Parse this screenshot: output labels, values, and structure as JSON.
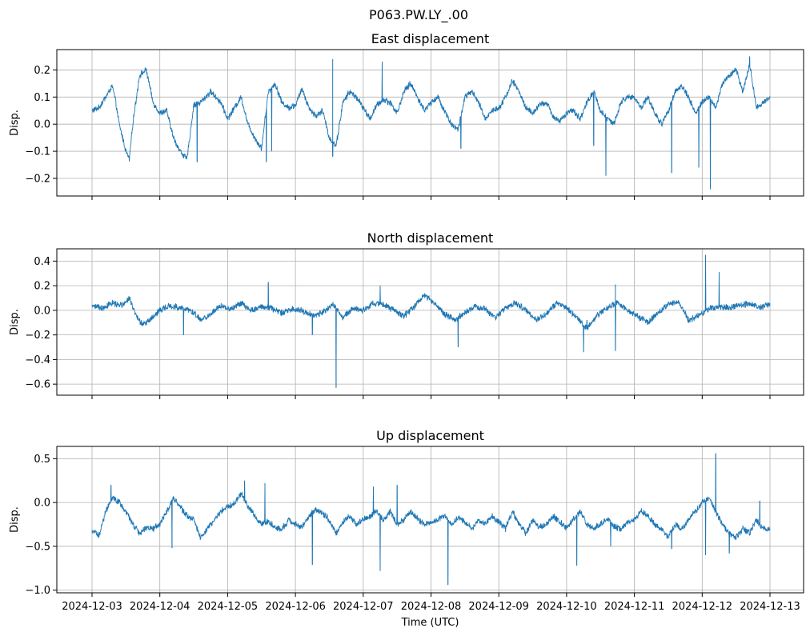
{
  "chart_data": [
    {
      "type": "line",
      "title": "East displacement",
      "suptitle": "P063.PW.LY_.00",
      "ylabel": "Disp.",
      "xlabel": "",
      "ylim": [
        -0.265,
        0.275
      ],
      "yticks": [
        -0.2,
        -0.1,
        0.0,
        0.1,
        0.2
      ],
      "ytick_labels": [
        "−0.2",
        "−0.1",
        "0.0",
        "0.1",
        "0.2"
      ],
      "x_start": "2024-12-03",
      "x_end": "2024-12-13",
      "grid": true,
      "color": "#1f77b4",
      "series": [
        {
          "x_days": [
            0.0,
            0.1,
            0.2,
            0.3,
            0.35,
            0.4,
            0.5,
            0.55,
            0.6,
            0.7,
            0.8,
            0.9,
            1.0,
            1.1,
            1.2,
            1.3,
            1.4,
            1.5,
            1.6,
            1.75,
            1.9,
            2.0,
            2.1,
            2.2,
            2.3,
            2.4,
            2.5,
            2.6,
            2.7,
            2.8,
            2.9,
            3.0,
            3.1,
            3.2,
            3.3,
            3.4,
            3.5,
            3.6,
            3.7,
            3.8,
            3.9,
            4.0,
            4.1,
            4.2,
            4.3,
            4.4,
            4.5,
            4.6,
            4.7,
            4.8,
            4.9,
            5.0,
            5.1,
            5.2,
            5.3,
            5.4,
            5.5,
            5.6,
            5.7,
            5.8,
            5.9,
            6.0,
            6.1,
            6.2,
            6.3,
            6.4,
            6.5,
            6.6,
            6.7,
            6.8,
            6.9,
            7.0,
            7.1,
            7.2,
            7.3,
            7.4,
            7.5,
            7.6,
            7.7,
            7.8,
            7.9,
            8.0,
            8.1,
            8.2,
            8.3,
            8.4,
            8.5,
            8.6,
            8.7,
            8.8,
            8.9,
            9.0,
            9.1,
            9.2,
            9.3,
            9.4,
            9.5,
            9.6,
            9.7,
            9.8,
            9.9,
            10.0
          ],
          "values": [
            0.05,
            0.06,
            0.1,
            0.14,
            0.08,
            0.0,
            -0.1,
            -0.13,
            0.0,
            0.18,
            0.2,
            0.08,
            0.04,
            0.05,
            -0.05,
            -0.1,
            -0.13,
            0.07,
            0.08,
            0.12,
            0.08,
            0.02,
            0.06,
            0.1,
            0.0,
            -0.05,
            -0.09,
            0.12,
            0.15,
            0.08,
            0.06,
            0.07,
            0.13,
            0.06,
            0.03,
            0.05,
            -0.05,
            -0.08,
            0.08,
            0.12,
            0.1,
            0.06,
            0.02,
            0.07,
            0.09,
            0.08,
            0.04,
            0.12,
            0.15,
            0.1,
            0.05,
            0.08,
            0.1,
            0.05,
            0.0,
            -0.02,
            0.1,
            0.12,
            0.08,
            0.02,
            0.05,
            0.06,
            0.1,
            0.16,
            0.12,
            0.06,
            0.04,
            0.07,
            0.08,
            0.03,
            0.01,
            0.04,
            0.05,
            0.02,
            0.08,
            0.12,
            0.05,
            0.02,
            0.0,
            0.08,
            0.1,
            0.1,
            0.06,
            0.1,
            0.04,
            0.0,
            0.05,
            0.12,
            0.14,
            0.1,
            0.04,
            0.08,
            0.1,
            0.06,
            0.15,
            0.18,
            0.2,
            0.12,
            0.22,
            0.06,
            0.08,
            0.1
          ]
        }
      ],
      "spikes": [
        {
          "x_days": 1.55,
          "value": -0.14
        },
        {
          "x_days": 2.57,
          "value": -0.14
        },
        {
          "x_days": 2.65,
          "value": -0.1
        },
        {
          "x_days": 3.55,
          "value": 0.24
        },
        {
          "x_days": 3.55,
          "value": -0.12
        },
        {
          "x_days": 4.28,
          "value": 0.23
        },
        {
          "x_days": 5.44,
          "value": -0.09
        },
        {
          "x_days": 7.4,
          "value": -0.08
        },
        {
          "x_days": 7.58,
          "value": -0.19
        },
        {
          "x_days": 8.55,
          "value": -0.18
        },
        {
          "x_days": 8.95,
          "value": -0.16
        },
        {
          "x_days": 9.12,
          "value": -0.24
        },
        {
          "x_days": 9.7,
          "value": 0.25
        }
      ]
    },
    {
      "type": "line",
      "title": "North displacement",
      "ylabel": "Disp.",
      "xlabel": "",
      "ylim": [
        -0.69,
        0.5
      ],
      "yticks": [
        -0.6,
        -0.4,
        -0.2,
        0.0,
        0.2,
        0.4
      ],
      "ytick_labels": [
        "−0.6",
        "−0.4",
        "−0.2",
        "0.0",
        "0.2",
        "0.4"
      ],
      "x_start": "2024-12-03",
      "x_end": "2024-12-13",
      "grid": true,
      "color": "#1f77b4",
      "series": [
        {
          "x_days": [
            0.0,
            0.15,
            0.3,
            0.45,
            0.55,
            0.65,
            0.75,
            0.9,
            1.0,
            1.15,
            1.3,
            1.45,
            1.6,
            1.75,
            1.9,
            2.05,
            2.2,
            2.35,
            2.5,
            2.65,
            2.8,
            2.95,
            3.1,
            3.25,
            3.4,
            3.55,
            3.7,
            3.85,
            4.0,
            4.15,
            4.3,
            4.45,
            4.6,
            4.75,
            4.9,
            5.05,
            5.2,
            5.35,
            5.5,
            5.65,
            5.8,
            5.95,
            6.1,
            6.25,
            6.4,
            6.55,
            6.7,
            6.85,
            7.0,
            7.15,
            7.3,
            7.45,
            7.6,
            7.75,
            7.9,
            8.05,
            8.2,
            8.35,
            8.5,
            8.65,
            8.8,
            8.95,
            9.1,
            9.25,
            9.4,
            9.55,
            9.7,
            9.85,
            10.0
          ],
          "values": [
            0.04,
            0.02,
            0.06,
            0.04,
            0.1,
            -0.05,
            -0.12,
            -0.05,
            0.0,
            0.04,
            0.02,
            0.0,
            -0.08,
            -0.03,
            0.04,
            0.01,
            0.06,
            0.0,
            0.03,
            0.02,
            -0.02,
            0.01,
            0.0,
            -0.04,
            -0.02,
            0.05,
            -0.06,
            0.02,
            0.0,
            0.06,
            0.05,
            0.0,
            -0.05,
            0.03,
            0.12,
            0.06,
            -0.03,
            -0.08,
            -0.02,
            0.03,
            0.01,
            -0.06,
            0.02,
            0.06,
            0.0,
            -0.08,
            -0.03,
            0.06,
            0.02,
            -0.06,
            -0.15,
            -0.04,
            0.02,
            0.06,
            0.0,
            -0.05,
            -0.1,
            -0.02,
            0.05,
            0.07,
            -0.08,
            -0.04,
            0.01,
            0.03,
            0.02,
            0.04,
            0.06,
            0.02,
            0.05
          ]
        }
      ],
      "spikes": [
        {
          "x_days": 1.35,
          "value": -0.2
        },
        {
          "x_days": 2.6,
          "value": 0.23
        },
        {
          "x_days": 3.25,
          "value": -0.2
        },
        {
          "x_days": 3.6,
          "value": -0.63
        },
        {
          "x_days": 4.25,
          "value": 0.2
        },
        {
          "x_days": 5.4,
          "value": -0.3
        },
        {
          "x_days": 7.25,
          "value": -0.34
        },
        {
          "x_days": 7.3,
          "value": -0.08
        },
        {
          "x_days": 7.72,
          "value": 0.21
        },
        {
          "x_days": 7.72,
          "value": -0.33
        },
        {
          "x_days": 9.05,
          "value": 0.45
        },
        {
          "x_days": 9.25,
          "value": 0.31
        }
      ]
    },
    {
      "type": "line",
      "title": "Up displacement",
      "ylabel": "Disp.",
      "xlabel": "Time (UTC)",
      "ylim": [
        -1.03,
        0.64
      ],
      "yticks": [
        -1.0,
        -0.5,
        0.0,
        0.5
      ],
      "ytick_labels": [
        "−1.0",
        "−0.5",
        "0.0",
        "0.5"
      ],
      "x_start": "2024-12-03",
      "x_end": "2024-12-13",
      "xtick_labels": [
        "2024-12-03",
        "2024-12-04",
        "2024-12-05",
        "2024-12-06",
        "2024-12-07",
        "2024-12-08",
        "2024-12-09",
        "2024-12-10",
        "2024-12-11",
        "2024-12-12",
        "2024-12-13"
      ],
      "grid": true,
      "color": "#1f77b4",
      "series": [
        {
          "x_days": [
            0.0,
            0.1,
            0.2,
            0.3,
            0.4,
            0.5,
            0.6,
            0.7,
            0.8,
            0.9,
            1.0,
            1.1,
            1.2,
            1.3,
            1.4,
            1.5,
            1.6,
            1.7,
            1.8,
            1.9,
            2.0,
            2.1,
            2.2,
            2.3,
            2.4,
            2.5,
            2.6,
            2.7,
            2.8,
            2.9,
            3.0,
            3.1,
            3.2,
            3.3,
            3.4,
            3.5,
            3.6,
            3.7,
            3.8,
            3.9,
            4.0,
            4.1,
            4.2,
            4.3,
            4.4,
            4.5,
            4.6,
            4.7,
            4.8,
            4.9,
            5.0,
            5.1,
            5.2,
            5.3,
            5.4,
            5.5,
            5.6,
            5.7,
            5.8,
            5.9,
            6.0,
            6.1,
            6.2,
            6.3,
            6.4,
            6.5,
            6.6,
            6.7,
            6.8,
            6.9,
            7.0,
            7.1,
            7.2,
            7.3,
            7.4,
            7.5,
            7.6,
            7.7,
            7.8,
            7.9,
            8.0,
            8.1,
            8.2,
            8.3,
            8.4,
            8.5,
            8.6,
            8.7,
            8.8,
            8.9,
            9.0,
            9.1,
            9.2,
            9.3,
            9.4,
            9.5,
            9.6,
            9.7,
            9.8,
            9.9,
            10.0
          ],
          "values": [
            -0.32,
            -0.38,
            -0.1,
            0.05,
            0.0,
            -0.1,
            -0.25,
            -0.35,
            -0.28,
            -0.3,
            -0.25,
            -0.1,
            0.05,
            -0.05,
            -0.15,
            -0.2,
            -0.4,
            -0.3,
            -0.2,
            -0.1,
            -0.05,
            0.0,
            0.1,
            -0.05,
            -0.15,
            -0.25,
            -0.22,
            -0.28,
            -0.3,
            -0.2,
            -0.25,
            -0.28,
            -0.15,
            -0.08,
            -0.12,
            -0.2,
            -0.35,
            -0.22,
            -0.15,
            -0.25,
            -0.2,
            -0.15,
            -0.1,
            -0.2,
            -0.1,
            -0.25,
            -0.2,
            -0.1,
            -0.18,
            -0.25,
            -0.22,
            -0.2,
            -0.15,
            -0.25,
            -0.18,
            -0.22,
            -0.3,
            -0.2,
            -0.25,
            -0.15,
            -0.22,
            -0.3,
            -0.1,
            -0.25,
            -0.35,
            -0.2,
            -0.28,
            -0.25,
            -0.15,
            -0.22,
            -0.3,
            -0.2,
            -0.1,
            -0.25,
            -0.3,
            -0.25,
            -0.18,
            -0.28,
            -0.3,
            -0.22,
            -0.2,
            -0.1,
            -0.15,
            -0.25,
            -0.3,
            -0.4,
            -0.25,
            -0.3,
            -0.2,
            -0.1,
            0.0,
            0.05,
            -0.1,
            -0.25,
            -0.35,
            -0.4,
            -0.3,
            -0.35,
            -0.2,
            -0.3,
            -0.3
          ]
        }
      ],
      "spikes": [
        {
          "x_days": 0.28,
          "value": 0.2
        },
        {
          "x_days": 1.18,
          "value": -0.52
        },
        {
          "x_days": 2.25,
          "value": 0.25
        },
        {
          "x_days": 2.55,
          "value": 0.22
        },
        {
          "x_days": 3.25,
          "value": -0.71
        },
        {
          "x_days": 4.15,
          "value": 0.18
        },
        {
          "x_days": 4.25,
          "value": -0.78
        },
        {
          "x_days": 4.5,
          "value": 0.2
        },
        {
          "x_days": 5.25,
          "value": -0.94
        },
        {
          "x_days": 7.15,
          "value": -0.72
        },
        {
          "x_days": 7.65,
          "value": -0.5
        },
        {
          "x_days": 8.55,
          "value": -0.53
        },
        {
          "x_days": 9.05,
          "value": -0.6
        },
        {
          "x_days": 9.2,
          "value": 0.56
        },
        {
          "x_days": 9.4,
          "value": -0.58
        },
        {
          "x_days": 9.85,
          "value": 0.02
        }
      ]
    }
  ]
}
